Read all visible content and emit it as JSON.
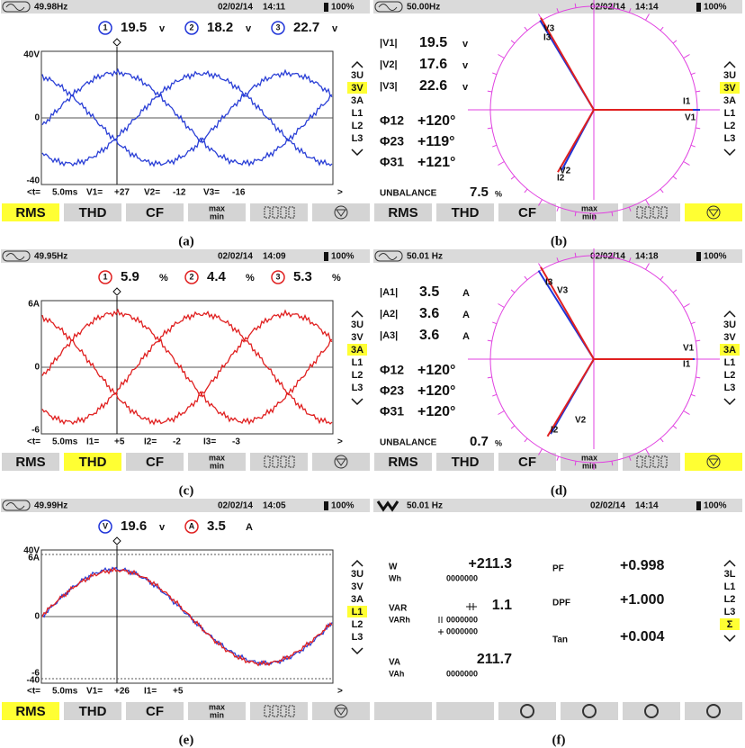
{
  "panels": [
    {
      "caption": "(a)",
      "kind": "wave",
      "status": {
        "frequency": "49.98Hz",
        "date": "02/02/14",
        "time": "14:11",
        "battery": "100%"
      },
      "readings": [
        {
          "tag": "1",
          "value": "19.5",
          "unit": "v",
          "color": "#1f34d8"
        },
        {
          "tag": "2",
          "value": "18.2",
          "unit": "v",
          "color": "#1f34d8"
        },
        {
          "tag": "3",
          "value": "22.7",
          "unit": "v",
          "color": "#1f34d8"
        }
      ],
      "trace_colors": [
        "#2a3fd6"
      ],
      "y_labels": [
        "40V",
        "0",
        "-40"
      ],
      "cursor": [
        "<t=",
        "5.0ms",
        "V1=",
        "+27",
        "V2=",
        "-12",
        "V3=",
        "-16",
        ">"
      ],
      "menu": [
        "3U",
        "3V",
        "3A",
        "L1",
        "L2",
        "L3"
      ],
      "menu_selected": 1,
      "buttons": [
        "RMS",
        "THD",
        "CF"
      ],
      "minmax": [
        "max",
        "min"
      ],
      "button_selected": 0
    },
    {
      "caption": "(b)",
      "kind": "phasor",
      "status": {
        "frequency": "50.00Hz",
        "date": "02/02/14",
        "time": "14:14",
        "battery": "100%"
      },
      "magnitudes": [
        {
          "label": "|V1|",
          "value": "19.5",
          "unit": "v"
        },
        {
          "label": "|V2|",
          "value": "17.6",
          "unit": "v"
        },
        {
          "label": "|V3|",
          "value": "22.6",
          "unit": "v"
        }
      ],
      "phases": [
        {
          "label": "Φ12",
          "value": "+120°"
        },
        {
          "label": "Φ23",
          "value": "+119°"
        },
        {
          "label": "Φ31",
          "value": "+121°"
        }
      ],
      "unbalance": {
        "label": "UNBALANCE",
        "value": "7.5",
        "unit": "%"
      },
      "vector_labels": [
        "V1",
        "V2",
        "V3",
        "I1",
        "I2",
        "I3"
      ],
      "vector_colors": [
        "#1f34d8",
        "#e02020"
      ],
      "menu": [
        "3U",
        "3V",
        "3A",
        "L1",
        "L2",
        "L3"
      ],
      "menu_selected": 1,
      "buttons": [
        "RMS",
        "THD",
        "CF"
      ],
      "minmax": [
        "max",
        "min"
      ],
      "button_selected": 5
    },
    {
      "caption": "(c)",
      "kind": "wave",
      "status": {
        "frequency": "49.95Hz",
        "date": "02/02/14",
        "time": "14:09",
        "battery": "100%"
      },
      "readings": [
        {
          "tag": "1",
          "value": "5.9",
          "unit": "%",
          "color": "#e02020"
        },
        {
          "tag": "2",
          "value": "4.4",
          "unit": "%",
          "color": "#e02020"
        },
        {
          "tag": "3",
          "value": "5.3",
          "unit": "%",
          "color": "#e02020"
        }
      ],
      "trace_colors": [
        "#e02020"
      ],
      "y_labels": [
        "6A",
        "0",
        "-6"
      ],
      "cursor": [
        "<t=",
        "5.0ms",
        "I1=",
        "+5",
        "I2=",
        "-2",
        "I3=",
        "-3",
        ">"
      ],
      "menu": [
        "3U",
        "3V",
        "3A",
        "L1",
        "L2",
        "L3"
      ],
      "menu_selected": 2,
      "buttons": [
        "RMS",
        "THD",
        "CF"
      ],
      "minmax": [
        "max",
        "min"
      ],
      "button_selected": 1
    },
    {
      "caption": "(d)",
      "kind": "phasor",
      "status": {
        "frequency": "50.01 Hz",
        "date": "02/02/14",
        "time": "14:18",
        "battery": "100%"
      },
      "magnitudes": [
        {
          "label": "|A1|",
          "value": "3.5",
          "unit": "A"
        },
        {
          "label": "|A2|",
          "value": "3.6",
          "unit": "A"
        },
        {
          "label": "|A3|",
          "value": "3.6",
          "unit": "A"
        }
      ],
      "phases": [
        {
          "label": "Φ12",
          "value": "+120°"
        },
        {
          "label": "Φ23",
          "value": "+120°"
        },
        {
          "label": "Φ31",
          "value": "+120°"
        }
      ],
      "unbalance": {
        "label": "UNBALANCE",
        "value": "0.7",
        "unit": "%"
      },
      "vector_labels": [
        "V1",
        "V2",
        "V3",
        "I1",
        "I2",
        "I3"
      ],
      "vector_colors": [
        "#1f34d8",
        "#e02020"
      ],
      "menu": [
        "3U",
        "3V",
        "3A",
        "L1",
        "L2",
        "L3"
      ],
      "menu_selected": 2,
      "buttons": [
        "RMS",
        "THD",
        "CF"
      ],
      "minmax": [
        "max",
        "min"
      ],
      "button_selected": 5
    },
    {
      "caption": "(e)",
      "kind": "wave",
      "status": {
        "frequency": "49.99Hz",
        "date": "02/02/14",
        "time": "14:05",
        "battery": "100%"
      },
      "readings": [
        {
          "tag": "V",
          "value": "19.6",
          "unit": "v",
          "color": "#1f34d8"
        },
        {
          "tag": "A",
          "value": "3.5",
          "unit": "A",
          "color": "#e02020"
        }
      ],
      "trace_colors": [
        "#2a3fd6",
        "#e02020"
      ],
      "y_labels": [
        "40V",
        "6A",
        "0",
        "-6",
        "-40"
      ],
      "cursor": [
        "<t=",
        "5.0ms",
        "V1=",
        "+26",
        "I1=",
        "+5",
        ">"
      ],
      "menu": [
        "3U",
        "3V",
        "3A",
        "L1",
        "L2",
        "L3"
      ],
      "menu_selected": 3,
      "buttons": [
        "RMS",
        "THD",
        "CF"
      ],
      "minmax": [
        "max",
        "min"
      ],
      "button_selected": 0
    },
    {
      "caption": "(f)",
      "kind": "power",
      "status": {
        "frequency": "50.01 Hz",
        "date": "02/02/14",
        "time": "14:14",
        "battery": "100%"
      },
      "left": [
        {
          "label": "W",
          "values": [
            "+211.3"
          ]
        },
        {
          "label": "Wh",
          "values": [
            "0000000"
          ]
        },
        {
          "label": "VAR",
          "values": [
            "1.1"
          ]
        },
        {
          "label": "VARh",
          "values": [
            "0000000",
            "0000000"
          ]
        },
        {
          "label": "VA",
          "values": [
            "211.7"
          ]
        },
        {
          "label": "VAh",
          "values": [
            "0000000"
          ]
        }
      ],
      "right": [
        {
          "label": "PF",
          "value": "+0.998"
        },
        {
          "label": "DPF",
          "value": "+1.000"
        },
        {
          "label": "Tan",
          "value": "+0.004"
        }
      ],
      "menu": [
        "3L",
        "L1",
        "L2",
        "L3",
        "Σ"
      ],
      "menu_selected": 4
    }
  ]
}
